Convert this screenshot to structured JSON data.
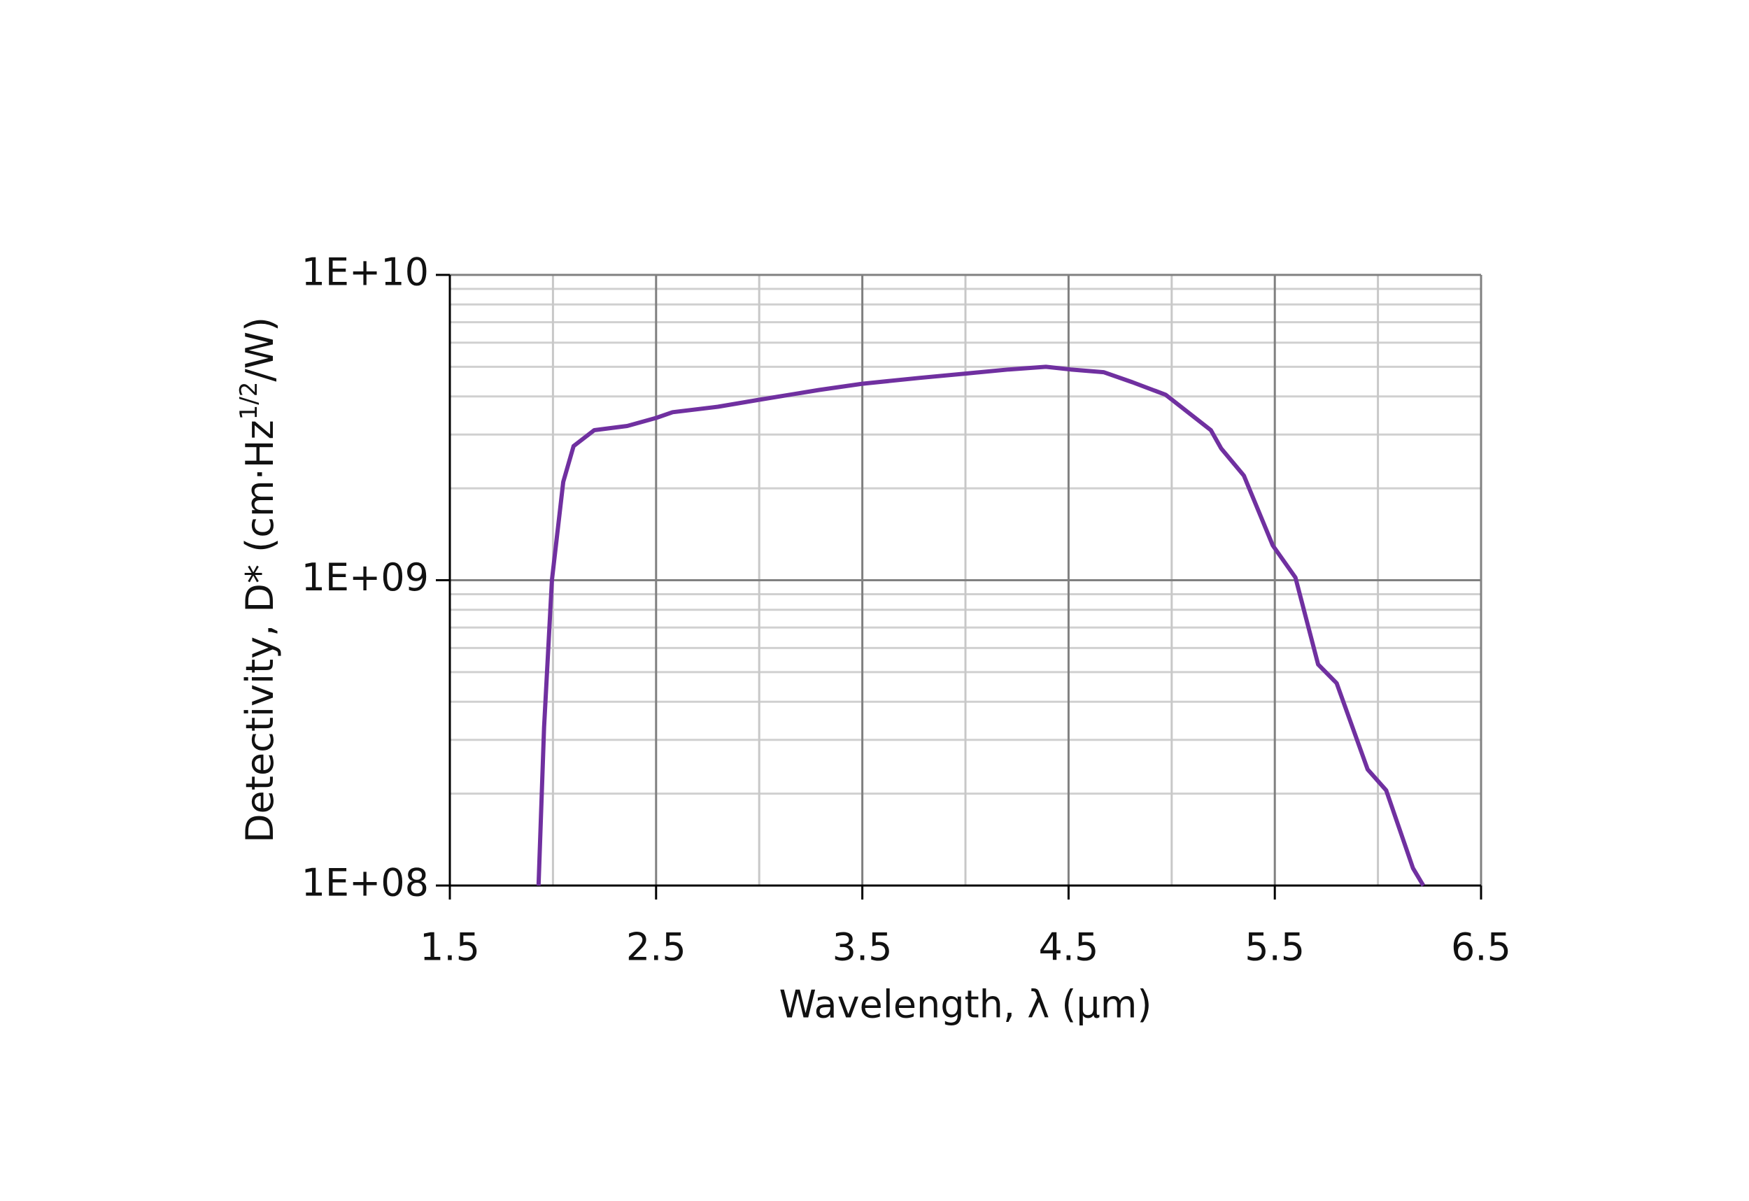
{
  "chart_data": {
    "type": "line",
    "log_y": true,
    "grid": true,
    "xlabel": "Wavelength, λ (μm)",
    "ylabel": "Detectivity, D* (cm·Hz",
    "ylabel_sup": "1/2",
    "ylabel_end": "/W)",
    "xlim": [
      1.5,
      6.5
    ],
    "xticks": [
      1.5,
      2.5,
      3.5,
      4.5,
      5.5,
      6.5
    ],
    "x_minor_ticks": [
      2,
      3,
      4,
      5,
      6
    ],
    "ylim": [
      100000000,
      10000000000
    ],
    "yticks": [
      {
        "value": 100000000,
        "label": "1E+08"
      },
      {
        "value": 1000000000,
        "label": "1E+09"
      },
      {
        "value": 10000000000,
        "label": "1E+10"
      }
    ],
    "y_minor_ticks": [
      200000000,
      300000000,
      400000000,
      500000000,
      600000000,
      700000000,
      800000000,
      900000000,
      2000000000,
      3000000000,
      4000000000,
      5000000000,
      6000000000,
      7000000000,
      8000000000,
      9000000000
    ],
    "x": [
      1.93,
      1.957,
      1.995,
      2.05,
      2.1,
      2.2,
      2.36,
      2.5,
      2.58,
      2.8,
      3.0,
      3.29,
      3.5,
      3.78,
      4.0,
      4.21,
      4.39,
      4.51,
      4.67,
      4.81,
      4.97,
      5.19,
      5.24,
      5.35,
      5.49,
      5.6,
      5.71,
      5.8,
      5.95,
      6.04,
      6.17,
      6.22
    ],
    "series": [
      {
        "color": "#7030a0",
        "values": [
          100000000,
          330000000,
          1000000000,
          2100000000,
          2750000000,
          3100000000,
          3200000000,
          3400000000,
          3550000000,
          3700000000,
          3900000000,
          4200000000,
          4400000000,
          4600000000,
          4750000000,
          4900000000,
          5000000000,
          4900000000,
          4800000000,
          4450000000,
          4050000000,
          3100000000,
          2700000000,
          2200000000,
          1300000000,
          1020000000,
          530000000,
          460000000,
          240000000,
          205000000,
          114000000,
          100000000
        ]
      }
    ]
  }
}
